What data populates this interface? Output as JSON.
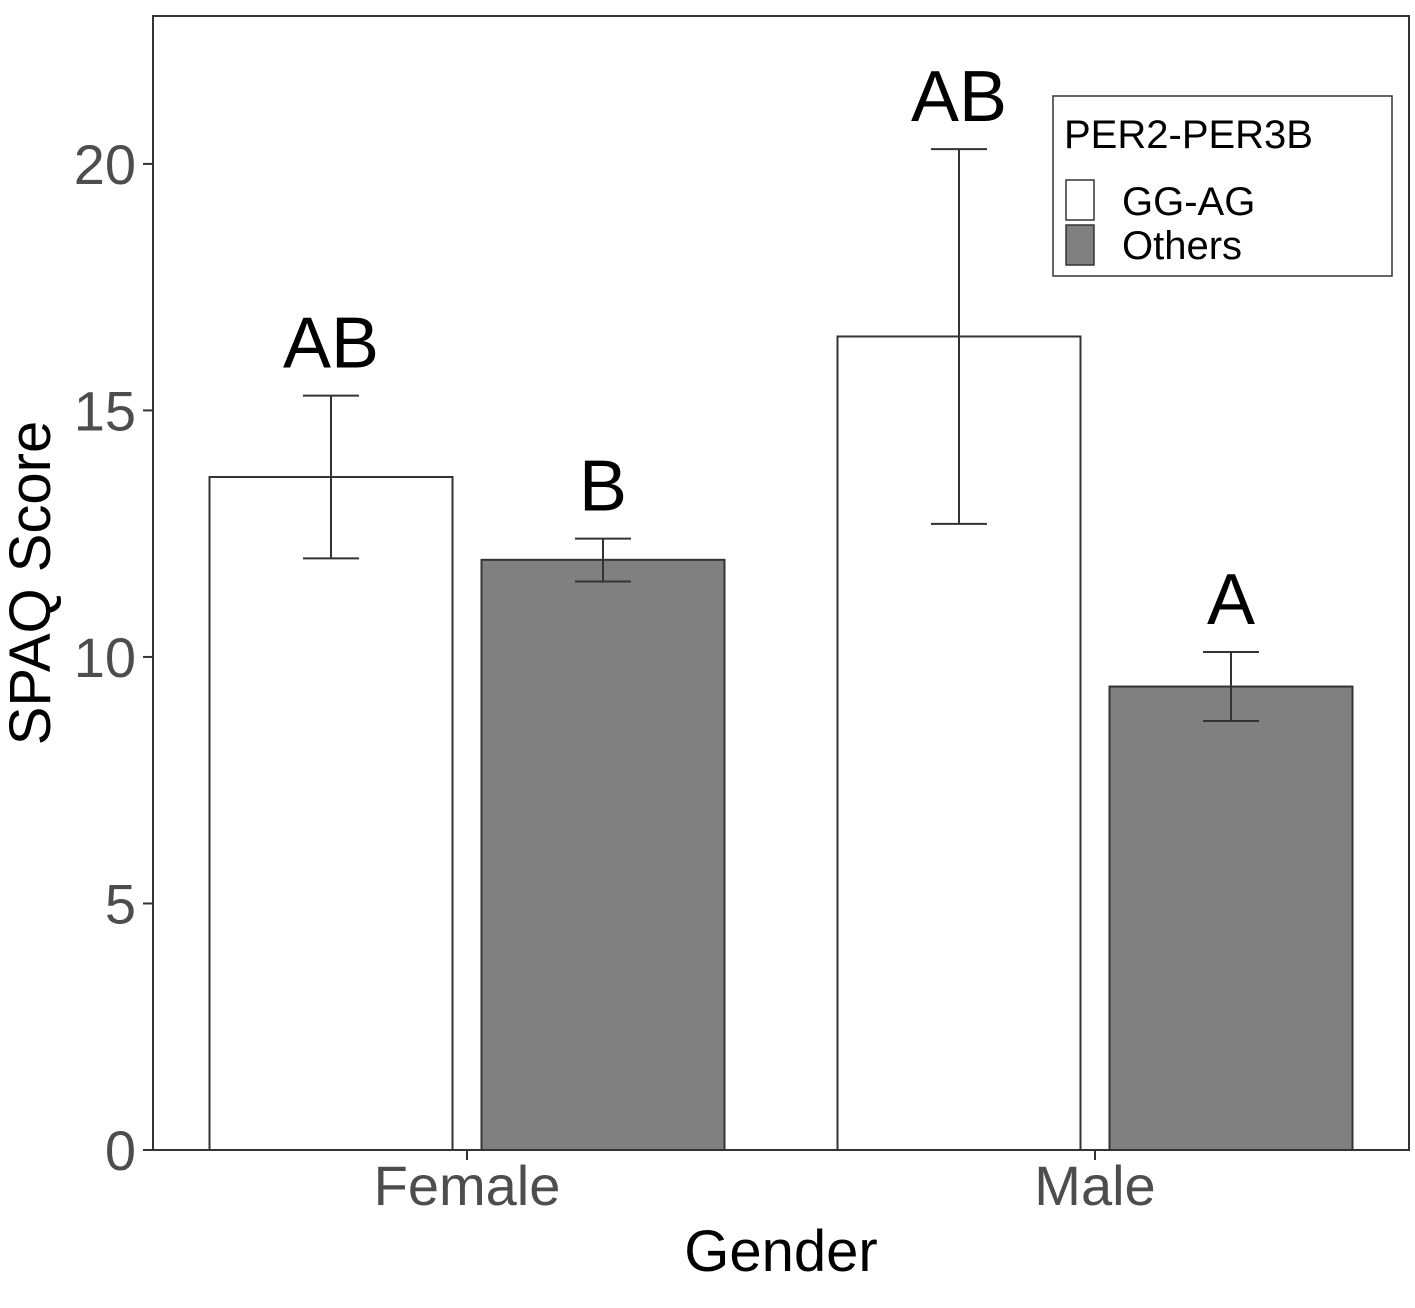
{
  "chart_data": {
    "type": "bar",
    "title": "",
    "xlabel": "Gender",
    "ylabel": "SPAQ Score",
    "ylim": [
      0,
      23
    ],
    "yticks": [
      0,
      5,
      10,
      15,
      20
    ],
    "grid": false,
    "legend_position": "top-right",
    "categories": [
      "Female",
      "Male"
    ],
    "legend": {
      "title": "PER2-PER3B"
    },
    "series": [
      {
        "name": "GG-AG",
        "color": "#ffffff",
        "values": [
          13.65,
          16.5
        ],
        "error_low": [
          12.0,
          12.7
        ],
        "error_high": [
          15.3,
          20.3
        ],
        "labels": [
          "AB",
          "AB"
        ]
      },
      {
        "name": "Others",
        "color": "#808080",
        "values": [
          11.97,
          9.4
        ],
        "error_low": [
          11.53,
          8.7
        ],
        "error_high": [
          12.4,
          10.1
        ],
        "labels": [
          "B",
          "A"
        ]
      }
    ]
  }
}
